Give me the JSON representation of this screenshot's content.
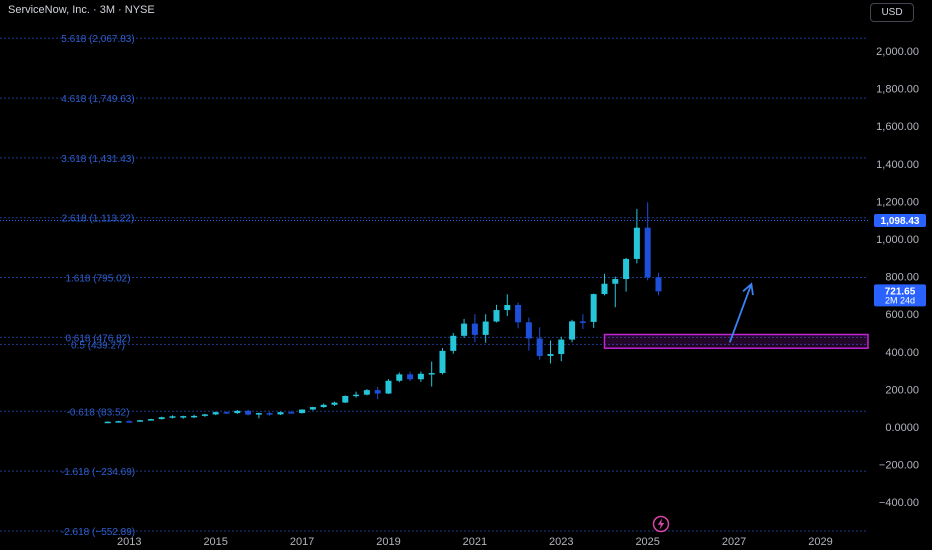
{
  "header": {
    "title": "ServiceNow, Inc. · 3M · NYSE",
    "currency": "USD"
  },
  "icons": {
    "event": "lightning-bolt-icon"
  },
  "colors": {
    "up": "#26c6da",
    "down": "#1e4fd8",
    "fib_line": "#1e3a8a",
    "fib_label": "#2f5fd0",
    "axis_text": "#b2b5be",
    "zone": "#c026d3",
    "arrow": "#3b82f6",
    "price_tag": "#2962ff"
  },
  "chart_data": {
    "type": "candlestick",
    "symbol": "ServiceNow, Inc.",
    "interval": "3M",
    "exchange": "NYSE",
    "ylim": [
      -600,
      2100
    ],
    "y_ticks": [
      2000,
      1800,
      1600,
      1400,
      1200,
      1000,
      800,
      600,
      400,
      200,
      0,
      -200,
      -400
    ],
    "y_tick_labels": [
      "2,000.00",
      "1,800.00",
      "1,600.00",
      "1,400.00",
      "1,200.00",
      "1,000.00",
      "800.00",
      "600.00",
      "400.00",
      "200.00",
      "0.0000",
      "−200.00",
      "−400.00"
    ],
    "x_range": [
      2012.6,
      2030.1
    ],
    "x_ticks": [
      2013,
      2015,
      2017,
      2019,
      2021,
      2023,
      2025,
      2027,
      2029
    ],
    "x_tick_labels": [
      "2013",
      "2015",
      "2017",
      "2019",
      "2021",
      "2023",
      "2025",
      "2027",
      "2029"
    ],
    "fib_levels": [
      {
        "price": 2067.83,
        "label": "5.618 (2,067.83)"
      },
      {
        "price": 1749.63,
        "label": "4.618 (1,749.63)"
      },
      {
        "price": 1431.43,
        "label": "3.618 (1,431.43)"
      },
      {
        "price": 1113.22,
        "label": "2.618 (1,113.22)"
      },
      {
        "price": 795.02,
        "label": "1.618 (795.02)"
      },
      {
        "price": 476.82,
        "label": "0.618 (476.82)"
      },
      {
        "price": 439.27,
        "label": "0.5 (439.27)"
      },
      {
        "price": 83.52,
        "label": "-0.618 (83.52)"
      },
      {
        "price": -234.69,
        "label": "-1.618 (−234.69)"
      },
      {
        "price": -552.89,
        "label": "-2.618 (−552.89)"
      }
    ],
    "price_tags": [
      {
        "price": 1098.43,
        "text": "1,098.43"
      },
      {
        "price": 721.65,
        "text": "721.65",
        "subtext": "2M 24d"
      }
    ],
    "zone": {
      "x_start": 2024.0,
      "x_end": 2030.1,
      "y_low": 419,
      "y_high": 492
    },
    "projection_arrow": {
      "x_from": 2026.9,
      "y_from": 450,
      "x_to": 2027.4,
      "y_to": 760
    },
    "candles": [
      {
        "t": 2012.5,
        "o": 27,
        "h": 30,
        "l": 25,
        "c": 28
      },
      {
        "t": 2012.75,
        "o": 28,
        "h": 33,
        "l": 26,
        "c": 31
      },
      {
        "t": 2013.0,
        "o": 31,
        "h": 35,
        "l": 27,
        "c": 29
      },
      {
        "t": 2013.25,
        "o": 29,
        "h": 38,
        "l": 28,
        "c": 36
      },
      {
        "t": 2013.5,
        "o": 36,
        "h": 44,
        "l": 34,
        "c": 42
      },
      {
        "t": 2013.75,
        "o": 42,
        "h": 55,
        "l": 40,
        "c": 52
      },
      {
        "t": 2014.0,
        "o": 52,
        "h": 62,
        "l": 45,
        "c": 57
      },
      {
        "t": 2014.25,
        "o": 57,
        "h": 60,
        "l": 44,
        "c": 58
      },
      {
        "t": 2014.5,
        "o": 58,
        "h": 65,
        "l": 48,
        "c": 59
      },
      {
        "t": 2014.75,
        "o": 59,
        "h": 70,
        "l": 54,
        "c": 67
      },
      {
        "t": 2015.0,
        "o": 67,
        "h": 82,
        "l": 63,
        "c": 79
      },
      {
        "t": 2015.25,
        "o": 79,
        "h": 82,
        "l": 70,
        "c": 74
      },
      {
        "t": 2015.5,
        "o": 74,
        "h": 90,
        "l": 70,
        "c": 86
      },
      {
        "t": 2015.75,
        "o": 86,
        "h": 92,
        "l": 62,
        "c": 66
      },
      {
        "t": 2016.0,
        "o": 66,
        "h": 76,
        "l": 46,
        "c": 74
      },
      {
        "t": 2016.25,
        "o": 74,
        "h": 80,
        "l": 60,
        "c": 67
      },
      {
        "t": 2016.5,
        "o": 67,
        "h": 82,
        "l": 64,
        "c": 79
      },
      {
        "t": 2016.75,
        "o": 79,
        "h": 86,
        "l": 73,
        "c": 74
      },
      {
        "t": 2017.0,
        "o": 74,
        "h": 94,
        "l": 72,
        "c": 93
      },
      {
        "t": 2017.25,
        "o": 93,
        "h": 108,
        "l": 88,
        "c": 106
      },
      {
        "t": 2017.5,
        "o": 106,
        "h": 125,
        "l": 102,
        "c": 118
      },
      {
        "t": 2017.75,
        "o": 118,
        "h": 135,
        "l": 112,
        "c": 130
      },
      {
        "t": 2018.0,
        "o": 130,
        "h": 168,
        "l": 128,
        "c": 165
      },
      {
        "t": 2018.25,
        "o": 165,
        "h": 188,
        "l": 156,
        "c": 172
      },
      {
        "t": 2018.5,
        "o": 172,
        "h": 202,
        "l": 168,
        "c": 196
      },
      {
        "t": 2018.75,
        "o": 196,
        "h": 213,
        "l": 148,
        "c": 178
      },
      {
        "t": 2019.0,
        "o": 178,
        "h": 255,
        "l": 176,
        "c": 246
      },
      {
        "t": 2019.25,
        "o": 246,
        "h": 290,
        "l": 238,
        "c": 280
      },
      {
        "t": 2019.5,
        "o": 280,
        "h": 295,
        "l": 244,
        "c": 254
      },
      {
        "t": 2019.75,
        "o": 254,
        "h": 295,
        "l": 240,
        "c": 283
      },
      {
        "t": 2020.0,
        "o": 283,
        "h": 348,
        "l": 215,
        "c": 287
      },
      {
        "t": 2020.25,
        "o": 287,
        "h": 420,
        "l": 280,
        "c": 405
      },
      {
        "t": 2020.5,
        "o": 405,
        "h": 500,
        "l": 390,
        "c": 485
      },
      {
        "t": 2020.75,
        "o": 485,
        "h": 575,
        "l": 475,
        "c": 550
      },
      {
        "t": 2021.0,
        "o": 550,
        "h": 600,
        "l": 450,
        "c": 490
      },
      {
        "t": 2021.25,
        "o": 490,
        "h": 600,
        "l": 448,
        "c": 561
      },
      {
        "t": 2021.5,
        "o": 561,
        "h": 650,
        "l": 556,
        "c": 622
      },
      {
        "t": 2021.75,
        "o": 622,
        "h": 706,
        "l": 590,
        "c": 649
      },
      {
        "t": 2022.0,
        "o": 649,
        "h": 662,
        "l": 525,
        "c": 557
      },
      {
        "t": 2022.25,
        "o": 557,
        "h": 582,
        "l": 406,
        "c": 471
      },
      {
        "t": 2022.5,
        "o": 471,
        "h": 530,
        "l": 358,
        "c": 378
      },
      {
        "t": 2022.75,
        "o": 378,
        "h": 460,
        "l": 338,
        "c": 388
      },
      {
        "t": 2023.0,
        "o": 388,
        "h": 480,
        "l": 350,
        "c": 465
      },
      {
        "t": 2023.25,
        "o": 465,
        "h": 570,
        "l": 451,
        "c": 562
      },
      {
        "t": 2023.5,
        "o": 562,
        "h": 600,
        "l": 521,
        "c": 559
      },
      {
        "t": 2023.75,
        "o": 559,
        "h": 710,
        "l": 527,
        "c": 707
      },
      {
        "t": 2024.0,
        "o": 707,
        "h": 815,
        "l": 700,
        "c": 762
      },
      {
        "t": 2024.25,
        "o": 762,
        "h": 800,
        "l": 637,
        "c": 787
      },
      {
        "t": 2024.5,
        "o": 787,
        "h": 900,
        "l": 720,
        "c": 894
      },
      {
        "t": 2024.75,
        "o": 894,
        "h": 1160,
        "l": 870,
        "c": 1060
      },
      {
        "t": 2025.0,
        "o": 1060,
        "h": 1195,
        "l": 780,
        "c": 796
      },
      {
        "t": 2025.25,
        "o": 796,
        "h": 820,
        "l": 700,
        "c": 721.65
      }
    ]
  }
}
